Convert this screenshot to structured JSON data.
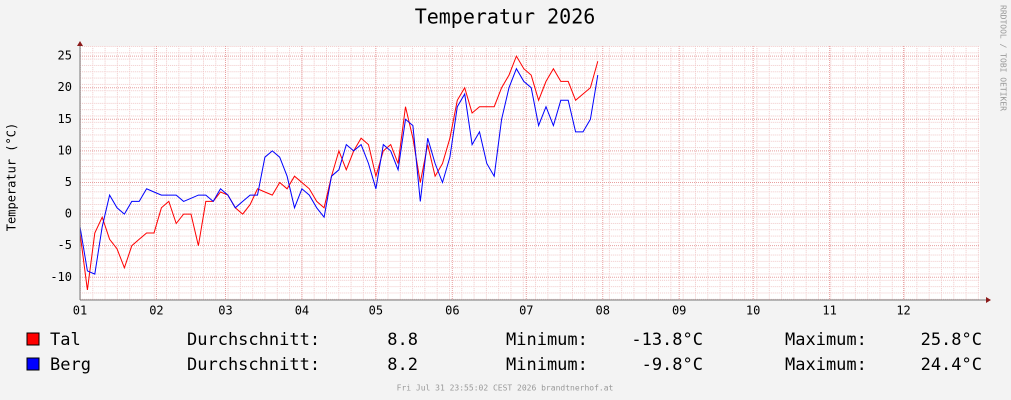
{
  "chart_data": {
    "type": "line",
    "title": "Temperatur 2026",
    "ylabel": "Temperatur (°C)",
    "side_text": "RRDTOOL / TOBI OETIKER",
    "footer": "Fri Jul 31 23:55:02 CEST 2026 brandtnerhof.at",
    "x": [
      0,
      3,
      6,
      9,
      12,
      15,
      18,
      21,
      24,
      27,
      30,
      33,
      36,
      39,
      42,
      45,
      48,
      51,
      54,
      57,
      60,
      63,
      66,
      69,
      72,
      75,
      78,
      81,
      84,
      87,
      90,
      93,
      96,
      99,
      102,
      105,
      108,
      111,
      114,
      117,
      120,
      123,
      126,
      129,
      132,
      135,
      138,
      141,
      144,
      147,
      150,
      153,
      156,
      159,
      162,
      165,
      168,
      171,
      174,
      177,
      180,
      183,
      186,
      189,
      192,
      195,
      198,
      201,
      204,
      207,
      210
    ],
    "xlim": [
      0,
      365
    ],
    "xticks": [
      {
        "value": 0,
        "label": "01"
      },
      {
        "value": 31,
        "label": "02"
      },
      {
        "value": 59,
        "label": "03"
      },
      {
        "value": 90,
        "label": "04"
      },
      {
        "value": 120,
        "label": "05"
      },
      {
        "value": 151,
        "label": "06"
      },
      {
        "value": 181,
        "label": "07"
      },
      {
        "value": 212,
        "label": "08"
      },
      {
        "value": 243,
        "label": "09"
      },
      {
        "value": 273,
        "label": "10"
      },
      {
        "value": 304,
        "label": "11"
      },
      {
        "value": 334,
        "label": "12"
      }
    ],
    "ylim": [
      -13.6,
      26.6
    ],
    "yticks": [
      -10,
      -5,
      0,
      5,
      10,
      15,
      20,
      25
    ],
    "grid": true,
    "series": [
      {
        "name": "Tal",
        "color": "#ff0000",
        "values": [
          -3,
          -12,
          -3,
          -0.5,
          -4,
          -5.5,
          -8.5,
          -5,
          -4,
          -3,
          -3,
          1,
          2,
          -1.5,
          0,
          0,
          -5,
          2,
          2,
          3.5,
          3,
          1,
          0,
          1.5,
          4,
          3.5,
          3,
          5,
          4,
          6,
          5,
          4,
          2,
          1,
          6,
          10,
          7,
          10,
          12,
          11,
          6,
          10,
          11,
          8,
          17,
          12,
          5,
          11,
          6,
          8,
          12,
          18,
          20,
          16,
          17,
          17,
          17,
          20,
          22,
          25,
          23,
          22,
          18,
          21,
          23,
          21,
          21,
          18,
          19,
          20,
          24.2
        ],
        "stats": [
          {
            "label": "Durchschnitt:",
            "value": "8.8"
          },
          {
            "label": "Minimum:",
            "value": "-13.8°C"
          },
          {
            "label": "Maximum:",
            "value": "25.8°C"
          }
        ]
      },
      {
        "name": "Berg",
        "color": "#0000ff",
        "values": [
          -2,
          -9,
          -9.5,
          -2,
          3,
          1,
          0,
          2,
          2,
          4,
          3.5,
          3,
          3,
          3,
          2,
          2.5,
          3,
          3,
          2,
          4,
          3,
          1,
          2,
          3,
          3,
          9,
          10,
          9,
          6,
          1,
          4,
          3,
          1,
          -0.5,
          6,
          7,
          11,
          10,
          11,
          8,
          4,
          11,
          10,
          7,
          15,
          14,
          2,
          12,
          8,
          5,
          9,
          17,
          19,
          11,
          13,
          8,
          6,
          15,
          20,
          23,
          21,
          20,
          14,
          17,
          14,
          18,
          18,
          13,
          13,
          15,
          22
        ],
        "stats": [
          {
            "label": "Durchschnitt:",
            "value": "8.2"
          },
          {
            "label": "Minimum:",
            "value": "-9.8°C"
          },
          {
            "label": "Maximum:",
            "value": "24.4°C"
          }
        ]
      }
    ]
  }
}
